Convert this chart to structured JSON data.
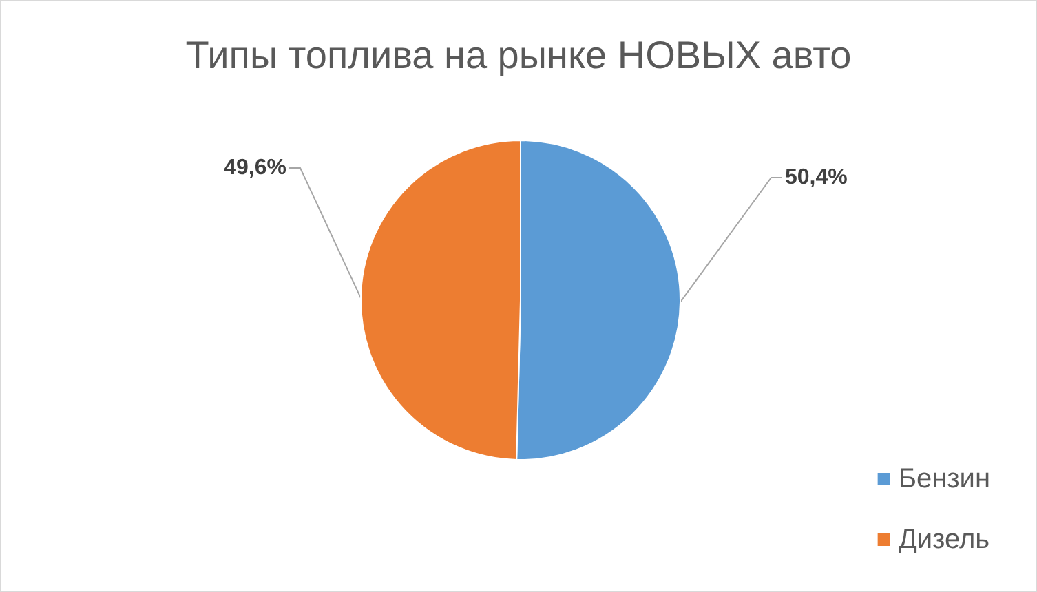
{
  "chart_data": {
    "type": "pie",
    "title": "Типы топлива на рынке НОВЫХ авто",
    "categories": [
      "Бензин",
      "Дизель"
    ],
    "values": [
      50.4,
      49.6
    ],
    "colors": [
      "#5b9bd5",
      "#ed7d31"
    ],
    "value_labels": [
      "50,4%",
      "49,6%"
    ],
    "legend": "bottom right"
  }
}
